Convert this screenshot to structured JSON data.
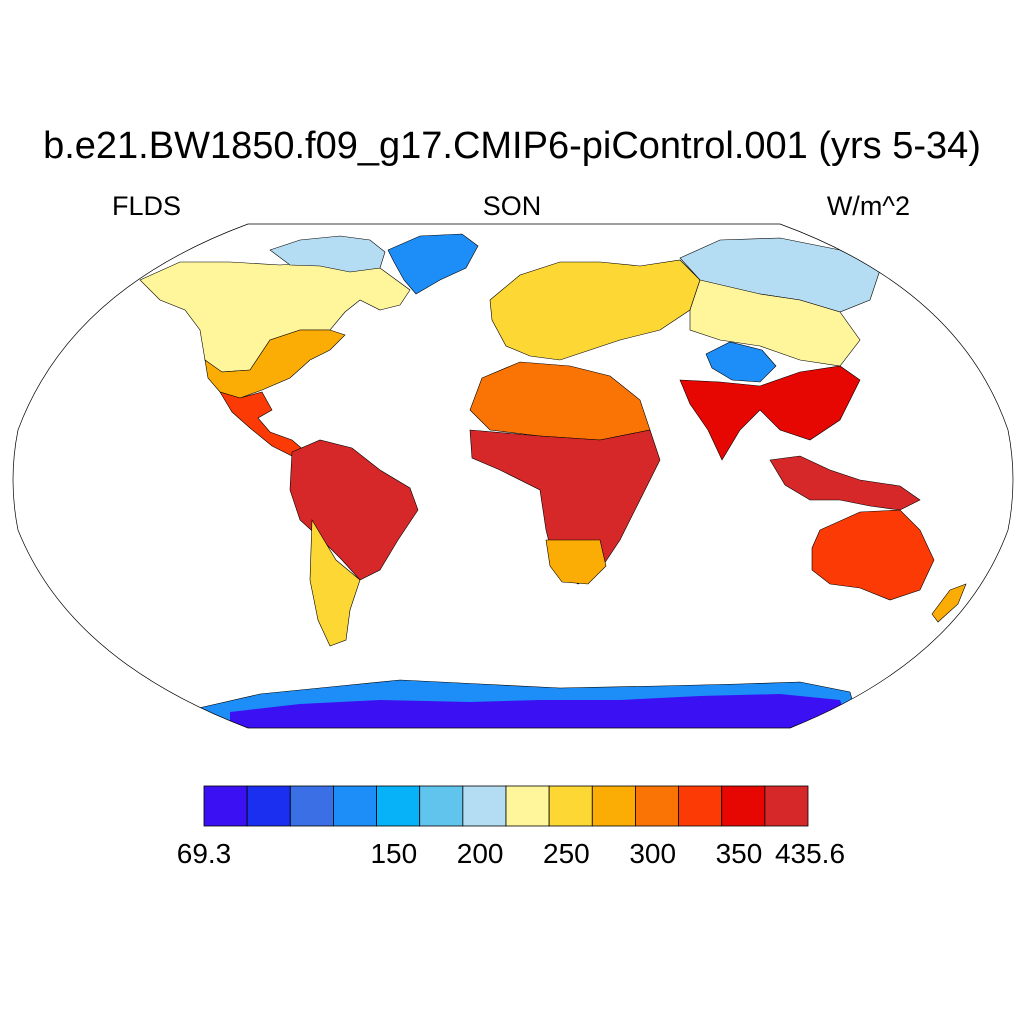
{
  "plot": {
    "title": "b.e21.BW1850.f09_g17.CMIP6-piControl.001 (yrs 5-34)",
    "left_string": "FLDS",
    "center_string": "SON",
    "right_string": "W/m^2"
  },
  "colorbar": {
    "colors": [
      "#3b10f2",
      "#1a2ff0",
      "#3a6fe6",
      "#1d8ef7",
      "#07b2f9",
      "#60c4ec",
      "#b4dcf2",
      "#fff59a",
      "#fdd835",
      "#fbad06",
      "#fa7405",
      "#fc3a05",
      "#e60602",
      "#d62828"
    ],
    "labels": [
      {
        "text": "69.3",
        "edge": 0
      },
      {
        "text": "150",
        "edge": 2.2
      },
      {
        "text": "200",
        "edge": 3.2
      },
      {
        "text": "250",
        "edge": 4.2
      },
      {
        "text": "300",
        "edge": 5.2
      },
      {
        "text": "350",
        "edge": 6.2
      },
      {
        "text": "435.6",
        "edge": 7.5
      }
    ]
  },
  "map": {
    "projection": "robinson",
    "regions": [
      {
        "name": "north-america-north",
        "color": "#fff59a"
      },
      {
        "name": "canadian-arctic",
        "color": "#b4dcf2"
      },
      {
        "name": "greenland",
        "color": "#1d8ef7"
      },
      {
        "name": "usa-east",
        "color": "#fbad06"
      },
      {
        "name": "mexico-central-america",
        "color": "#fc3a05"
      },
      {
        "name": "south-america",
        "color": "#d62828"
      },
      {
        "name": "patagonia",
        "color": "#fdd835"
      },
      {
        "name": "europe",
        "color": "#fdd835"
      },
      {
        "name": "siberia",
        "color": "#b4dcf2"
      },
      {
        "name": "tibet",
        "color": "#1d8ef7"
      },
      {
        "name": "africa-north",
        "color": "#fa7405"
      },
      {
        "name": "africa-central",
        "color": "#d62828"
      },
      {
        "name": "india-southeast-asia",
        "color": "#e60602"
      },
      {
        "name": "maritime-continent",
        "color": "#d62828"
      },
      {
        "name": "australia",
        "color": "#fc3a05"
      },
      {
        "name": "new-zealand",
        "color": "#fbad06"
      },
      {
        "name": "antarctica",
        "color": "#3b10f2"
      }
    ]
  }
}
